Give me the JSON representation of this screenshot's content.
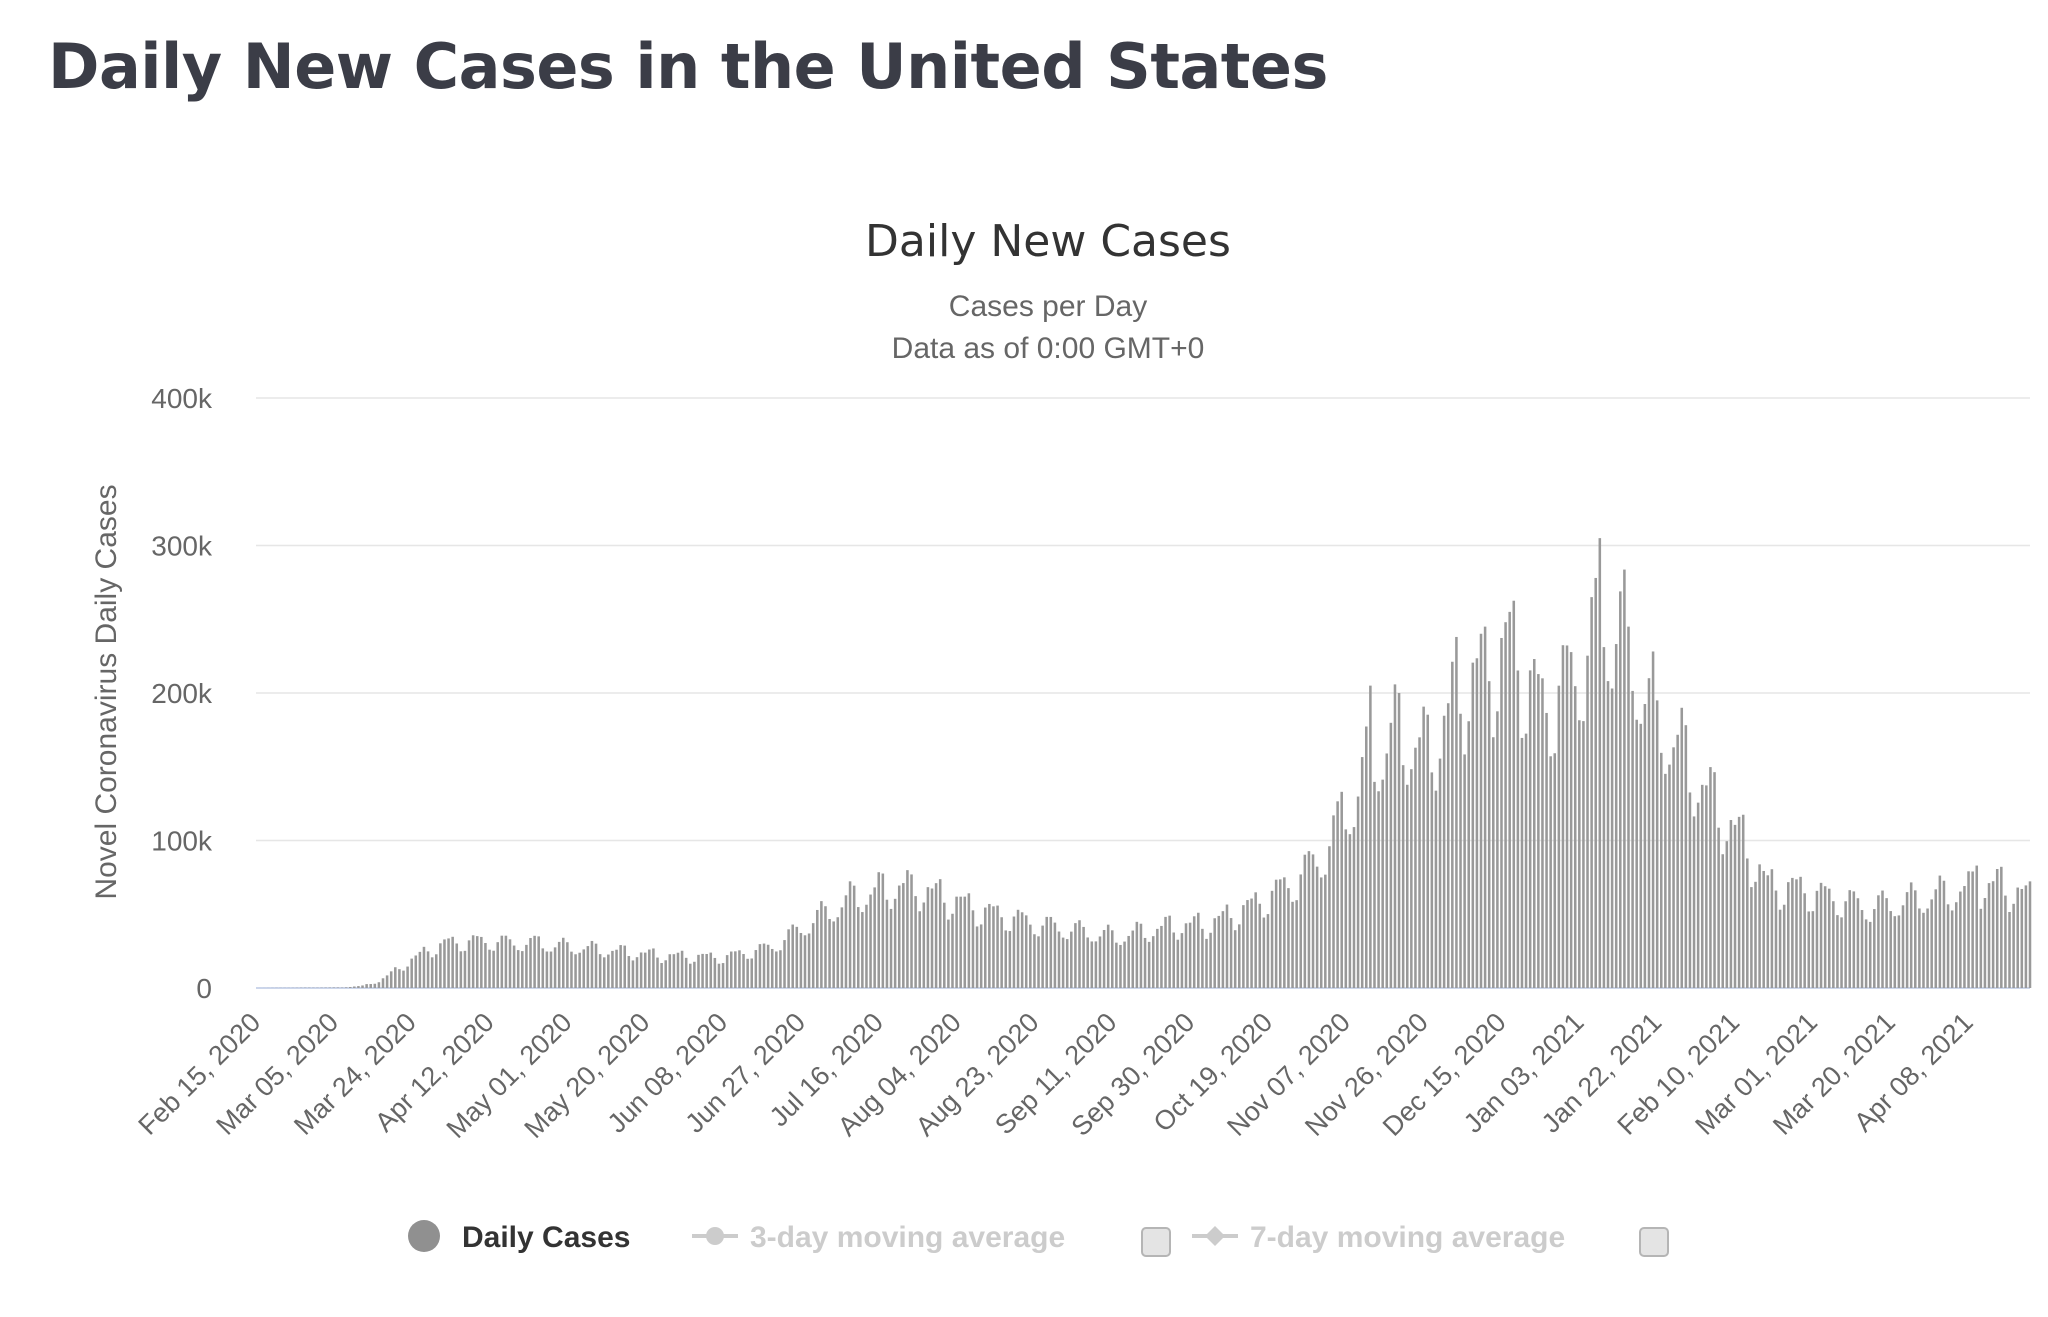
{
  "page": {
    "title": "Daily New Cases in the United States"
  },
  "chart_data": {
    "type": "bar",
    "title": "Daily New Cases",
    "subtitle_lines": [
      "Cases per Day",
      "Data as of 0:00 GMT+0"
    ],
    "ylabel": "Novel Coronavirus Daily Cases",
    "ylim": [
      0,
      400000
    ],
    "y_ticks": [
      {
        "value": 0,
        "label": "0"
      },
      {
        "value": 100000,
        "label": "100k"
      },
      {
        "value": 200000,
        "label": "200k"
      },
      {
        "value": 300000,
        "label": "300k"
      },
      {
        "value": 400000,
        "label": "400k"
      }
    ],
    "x_start": "2020-02-15",
    "x_end": "2021-04-23",
    "x_ticks": [
      "Feb 15, 2020",
      "Mar 05, 2020",
      "Mar 24, 2020",
      "Apr 12, 2020",
      "May 01, 2020",
      "May 20, 2020",
      "Jun 08, 2020",
      "Jun 27, 2020",
      "Jul 16, 2020",
      "Aug 04, 2020",
      "Aug 23, 2020",
      "Sep 11, 2020",
      "Sep 30, 2020",
      "Oct 19, 2020",
      "Nov 07, 2020",
      "Nov 26, 2020",
      "Dec 15, 2020",
      "Jan 03, 2021",
      "Jan 22, 2021",
      "Feb 10, 2021",
      "Mar 01, 2021",
      "Mar 20, 2021",
      "Apr 08, 2021"
    ],
    "grid": true,
    "bar_color": "#999999",
    "series": [
      {
        "name": "Daily Cases",
        "anchors": [
          {
            "x": "2020-02-15",
            "y": 0
          },
          {
            "x": "2020-03-07",
            "y": 300
          },
          {
            "x": "2020-03-12",
            "y": 1500
          },
          {
            "x": "2020-03-16",
            "y": 4500
          },
          {
            "x": "2020-03-20",
            "y": 12000
          },
          {
            "x": "2020-03-24",
            "y": 19000
          },
          {
            "x": "2020-03-28",
            "y": 26000
          },
          {
            "x": "2020-04-02",
            "y": 31000
          },
          {
            "x": "2020-04-10",
            "y": 32000
          },
          {
            "x": "2020-04-24",
            "y": 30000
          },
          {
            "x": "2020-05-10",
            "y": 26000
          },
          {
            "x": "2020-05-25",
            "y": 22000
          },
          {
            "x": "2020-06-08",
            "y": 21000
          },
          {
            "x": "2020-06-20",
            "y": 28000
          },
          {
            "x": "2020-07-01",
            "y": 48000
          },
          {
            "x": "2020-07-10",
            "y": 62000
          },
          {
            "x": "2020-07-18",
            "y": 68000
          },
          {
            "x": "2020-07-24",
            "y": 70000
          },
          {
            "x": "2020-08-01",
            "y": 62000
          },
          {
            "x": "2020-08-10",
            "y": 53000
          },
          {
            "x": "2020-08-25",
            "y": 43000
          },
          {
            "x": "2020-09-12",
            "y": 35000
          },
          {
            "x": "2020-09-25",
            "y": 42000
          },
          {
            "x": "2020-10-05",
            "y": 44000
          },
          {
            "x": "2020-10-15",
            "y": 56000
          },
          {
            "x": "2020-10-25",
            "y": 72000
          },
          {
            "x": "2020-11-01",
            "y": 90000
          },
          {
            "x": "2020-11-07",
            "y": 118000
          },
          {
            "x": "2020-11-13",
            "y": 155000
          },
          {
            "x": "2020-11-20",
            "y": 175000
          },
          {
            "x": "2020-11-27",
            "y": 160000
          },
          {
            "x": "2020-12-05",
            "y": 205000
          },
          {
            "x": "2020-12-12",
            "y": 222000
          },
          {
            "x": "2020-12-18",
            "y": 230000
          },
          {
            "x": "2020-12-25",
            "y": 190000
          },
          {
            "x": "2021-01-02",
            "y": 215000
          },
          {
            "x": "2021-01-09",
            "y": 250000
          },
          {
            "x": "2021-01-14",
            "y": 240000
          },
          {
            "x": "2021-01-20",
            "y": 195000
          },
          {
            "x": "2021-01-28",
            "y": 160000
          },
          {
            "x": "2021-02-05",
            "y": 125000
          },
          {
            "x": "2021-02-12",
            "y": 100000
          },
          {
            "x": "2021-02-18",
            "y": 70000
          },
          {
            "x": "2021-02-25",
            "y": 68000
          },
          {
            "x": "2021-03-05",
            "y": 62000
          },
          {
            "x": "2021-03-15",
            "y": 55000
          },
          {
            "x": "2021-03-25",
            "y": 60000
          },
          {
            "x": "2021-04-05",
            "y": 66000
          },
          {
            "x": "2021-04-15",
            "y": 71000
          },
          {
            "x": "2021-04-23",
            "y": 62000
          }
        ],
        "spikes": [
          {
            "x": "2021-01-08",
            "y": 305000
          },
          {
            "x": "2021-01-07",
            "y": 278000
          },
          {
            "x": "2021-01-06",
            "y": 265000
          },
          {
            "x": "2020-12-17",
            "y": 255000
          },
          {
            "x": "2020-12-16",
            "y": 248000
          },
          {
            "x": "2020-12-11",
            "y": 245000
          },
          {
            "x": "2020-12-04",
            "y": 238000
          },
          {
            "x": "2021-01-15",
            "y": 245000
          },
          {
            "x": "2021-01-22",
            "y": 195000
          },
          {
            "x": "2020-11-13",
            "y": 205000
          },
          {
            "x": "2020-11-20",
            "y": 200000
          },
          {
            "x": "2020-11-06",
            "y": 133000
          },
          {
            "x": "2020-07-24",
            "y": 77000
          },
          {
            "x": "2020-04-24",
            "y": 35000
          },
          {
            "x": "2021-04-10",
            "y": 83000
          }
        ]
      }
    ],
    "legend": [
      {
        "name": "Daily Cases",
        "symbol": "circle",
        "active": true
      },
      {
        "name": "3-day moving average",
        "symbol": "line-dot",
        "active": false,
        "checkbox": true
      },
      {
        "name": "7-day moving average",
        "symbol": "line-diamond",
        "active": false,
        "checkbox": true
      }
    ],
    "legend_placement": "bottom-center"
  }
}
